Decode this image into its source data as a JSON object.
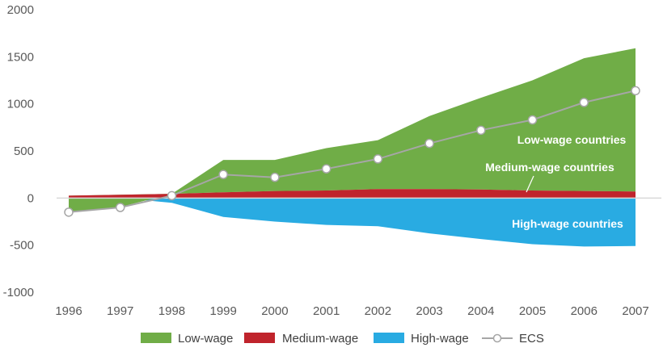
{
  "chart_data": {
    "type": "area",
    "categories": [
      "1996",
      "1997",
      "1998",
      "1999",
      "2000",
      "2001",
      "2002",
      "2003",
      "2004",
      "2005",
      "2006",
      "2007"
    ],
    "ylim": [
      -1000,
      2000
    ],
    "yticks": [
      -1000,
      -500,
      0,
      500,
      1000,
      1500,
      2000
    ],
    "grid": false,
    "legend_position": "bottom",
    "series": [
      {
        "name": "Low-wage",
        "color": "#70ad47",
        "values": [
          -180,
          -130,
          0,
          345,
          330,
          450,
          520,
          775,
          975,
          1170,
          1410,
          1520
        ]
      },
      {
        "name": "Medium-wage",
        "color": "#c0242c",
        "values": [
          25,
          35,
          45,
          60,
          75,
          80,
          95,
          95,
          90,
          80,
          75,
          70
        ]
      },
      {
        "name": "High-wage",
        "color": "#29abe2",
        "values": [
          10,
          0,
          -50,
          -200,
          -250,
          -285,
          -300,
          -375,
          -435,
          -490,
          -515,
          -510
        ]
      },
      {
        "name": "ECS",
        "color": "#a6a6a6",
        "values": [
          -150,
          -100,
          25,
          250,
          220,
          310,
          415,
          580,
          720,
          830,
          1015,
          1140
        ]
      }
    ],
    "annotations": [
      {
        "text": "Low-wage countries"
      },
      {
        "text": "Medium-wage countries"
      },
      {
        "text": "High-wage countries"
      }
    ]
  }
}
